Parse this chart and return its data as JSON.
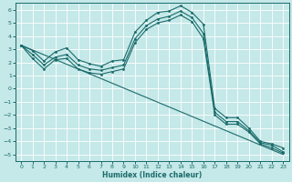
{
  "xlabel": "Humidex (Indice chaleur)",
  "background_color": "#c5e8e8",
  "grid_color": "#ffffff",
  "line_color": "#1a6b6b",
  "xlim": [
    -0.5,
    23.5
  ],
  "ylim": [
    -5.5,
    6.5
  ],
  "yticks": [
    -5,
    -4,
    -3,
    -2,
    -1,
    0,
    1,
    2,
    3,
    4,
    5,
    6
  ],
  "xticks": [
    0,
    1,
    2,
    3,
    4,
    5,
    6,
    7,
    8,
    9,
    10,
    11,
    12,
    13,
    14,
    15,
    16,
    17,
    18,
    19,
    20,
    21,
    22,
    23
  ],
  "line1_x": [
    0,
    1,
    2,
    3,
    4,
    5,
    6,
    7,
    8,
    9,
    10,
    11,
    12,
    13,
    14,
    15,
    16,
    17,
    18,
    19,
    20,
    21,
    22,
    23
  ],
  "line1_y": [
    3.3,
    2.9,
    2.1,
    2.8,
    3.1,
    2.2,
    1.9,
    1.7,
    2.1,
    2.2,
    4.3,
    5.2,
    5.8,
    5.9,
    6.3,
    5.8,
    4.9,
    -1.5,
    -2.2,
    -2.2,
    -3.0,
    -4.0,
    -4.2,
    -4.5
  ],
  "line2_x": [
    0,
    1,
    2,
    3,
    4,
    5,
    6,
    7,
    8,
    9,
    10,
    11,
    12,
    13,
    14,
    15,
    16,
    17,
    18,
    19,
    20,
    21,
    22,
    23
  ],
  "line2_y": [
    3.3,
    2.6,
    1.8,
    2.4,
    2.6,
    1.8,
    1.5,
    1.4,
    1.6,
    1.8,
    3.8,
    4.8,
    5.3,
    5.5,
    5.9,
    5.4,
    4.2,
    -1.8,
    -2.5,
    -2.5,
    -3.2,
    -4.1,
    -4.3,
    -4.8
  ],
  "line3_x": [
    0,
    1,
    2,
    3,
    4,
    5,
    6,
    7,
    8,
    9,
    10,
    11,
    12,
    13,
    14,
    15,
    16,
    17,
    18,
    19,
    20,
    21,
    22,
    23
  ],
  "line3_y": [
    3.3,
    2.3,
    1.5,
    2.2,
    2.3,
    1.5,
    1.2,
    1.1,
    1.3,
    1.5,
    3.5,
    4.5,
    5.0,
    5.2,
    5.6,
    5.1,
    3.8,
    -2.0,
    -2.7,
    -2.7,
    -3.3,
    -4.2,
    -4.5,
    -4.9
  ],
  "line4_x": [
    0,
    23
  ],
  "line4_y": [
    3.3,
    -5.0
  ]
}
